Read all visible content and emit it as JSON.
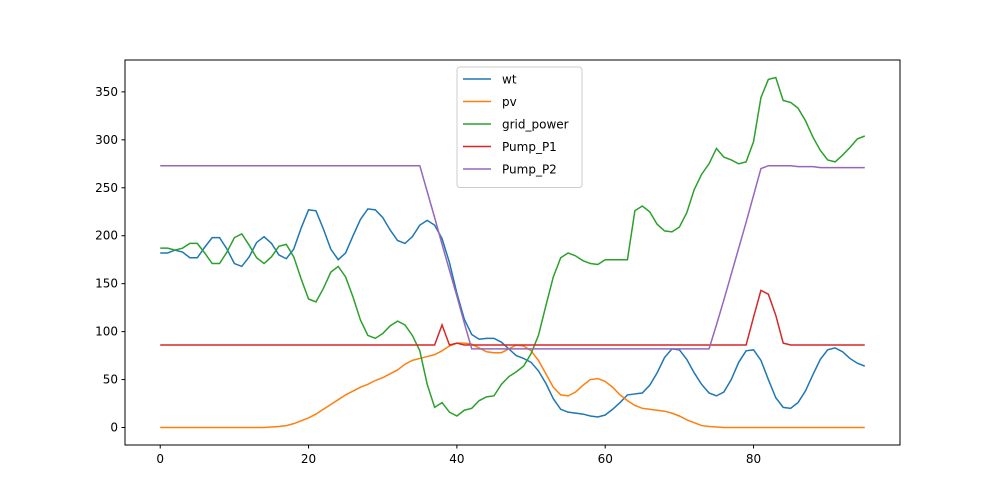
{
  "chart_data": {
    "type": "line",
    "x": [
      0,
      1,
      2,
      3,
      4,
      5,
      6,
      7,
      8,
      9,
      10,
      11,
      12,
      13,
      14,
      15,
      16,
      17,
      18,
      19,
      20,
      21,
      22,
      23,
      24,
      25,
      26,
      27,
      28,
      29,
      30,
      31,
      32,
      33,
      34,
      35,
      36,
      37,
      38,
      39,
      40,
      41,
      42,
      43,
      44,
      45,
      46,
      47,
      48,
      49,
      50,
      51,
      52,
      53,
      54,
      55,
      56,
      57,
      58,
      59,
      60,
      61,
      62,
      63,
      64,
      65,
      66,
      67,
      68,
      69,
      70,
      71,
      72,
      73,
      74,
      75,
      76,
      77,
      78,
      79,
      80,
      81,
      82,
      83,
      84,
      85,
      86,
      87,
      88,
      89,
      90,
      91,
      92,
      93,
      94,
      95
    ],
    "series": [
      {
        "name": "wt",
        "color": "#1f77b4",
        "values": [
          182,
          182,
          185,
          183,
          177,
          177,
          188,
          198,
          198,
          186,
          171,
          168,
          178,
          193,
          199,
          192,
          180,
          176,
          186,
          208,
          227,
          226,
          207,
          186,
          175,
          182,
          200,
          217,
          228,
          227,
          219,
          206,
          195,
          192,
          199,
          211,
          216,
          211,
          197,
          172,
          140,
          113,
          97,
          92,
          93,
          93,
          89,
          82,
          75,
          72,
          68,
          59,
          46,
          30,
          19,
          16,
          15,
          14,
          12,
          11,
          13,
          19,
          26,
          34,
          35,
          36,
          44,
          57,
          73,
          82,
          81,
          71,
          57,
          45,
          36,
          33,
          37,
          50,
          68,
          80,
          81,
          70,
          50,
          31,
          21,
          20,
          26,
          38,
          55,
          71,
          81,
          83,
          79,
          72,
          67,
          64
        ]
      },
      {
        "name": "pv",
        "color": "#ff7f0e",
        "values": [
          0,
          0,
          0,
          0,
          0,
          0,
          0,
          0,
          0,
          0,
          0,
          0,
          0,
          0,
          0,
          0.5,
          1,
          2,
          4,
          7,
          10,
          14,
          19,
          24,
          29,
          34,
          38,
          42,
          45,
          49,
          52,
          56,
          60,
          66,
          70,
          72,
          74,
          76,
          80,
          85,
          88,
          88,
          87,
          83,
          79,
          78,
          78,
          82,
          86,
          85,
          80,
          70,
          56,
          42,
          34,
          33,
          37,
          44,
          50,
          51,
          48,
          42,
          34,
          28,
          23,
          20,
          19,
          18,
          17,
          15,
          12,
          8,
          5,
          2,
          1,
          0.5,
          0,
          0,
          0,
          0,
          0,
          0,
          0,
          0,
          0,
          0,
          0,
          0,
          0,
          0,
          0,
          0,
          0,
          0,
          0,
          0
        ]
      },
      {
        "name": "grid_power",
        "color": "#2ca02c",
        "values": [
          187,
          187,
          185,
          187,
          192,
          192,
          182,
          171,
          171,
          183,
          198,
          202,
          190,
          177,
          171,
          178,
          189,
          191,
          178,
          155,
          134,
          131,
          145,
          162,
          168,
          157,
          136,
          112,
          96,
          93,
          98,
          106,
          111,
          107,
          96,
          80,
          45,
          21,
          26,
          16,
          12,
          18,
          20,
          28,
          32,
          33,
          45,
          53,
          58,
          64,
          77,
          96,
          127,
          157,
          177,
          182,
          179,
          174,
          171,
          170,
          175,
          175,
          175,
          175,
          226,
          231,
          225,
          212,
          205,
          204,
          209,
          224,
          248,
          264,
          275,
          291,
          282,
          279,
          275,
          277,
          298,
          344,
          363,
          365,
          341,
          339,
          333,
          320,
          303,
          289,
          279,
          277,
          284,
          292,
          301,
          304
        ]
      },
      {
        "name": "Pump_P1",
        "color": "#d62728",
        "values": [
          86,
          86,
          86,
          86,
          86,
          86,
          86,
          86,
          86,
          86,
          86,
          86,
          86,
          86,
          86,
          86,
          86,
          86,
          86,
          86,
          86,
          86,
          86,
          86,
          86,
          86,
          86,
          86,
          86,
          86,
          86,
          86,
          86,
          86,
          86,
          86,
          86,
          86,
          107,
          86,
          88,
          86,
          86,
          86,
          86,
          86,
          86,
          86,
          86,
          86,
          86,
          86,
          86,
          86,
          86,
          86,
          86,
          86,
          86,
          86,
          86,
          86,
          86,
          86,
          86,
          86,
          86,
          86,
          86,
          86,
          86,
          86,
          86,
          86,
          86,
          86,
          86,
          86,
          86,
          86,
          115,
          143,
          139,
          117,
          88,
          86,
          86,
          86,
          86,
          86,
          86,
          86,
          86,
          86,
          86,
          86
        ]
      },
      {
        "name": "Pump_P2",
        "color": "#9467bd",
        "values": [
          273,
          273,
          273,
          273,
          273,
          273,
          273,
          273,
          273,
          273,
          273,
          273,
          273,
          273,
          273,
          273,
          273,
          273,
          273,
          273,
          273,
          273,
          273,
          273,
          273,
          273,
          273,
          273,
          273,
          273,
          273,
          273,
          273,
          273,
          273,
          273,
          246,
          219,
          191,
          164,
          137,
          109,
          82,
          82,
          82,
          82,
          82,
          82,
          82,
          82,
          82,
          82,
          82,
          82,
          82,
          82,
          82,
          82,
          82,
          82,
          82,
          82,
          82,
          82,
          82,
          82,
          82,
          82,
          82,
          82,
          82,
          82,
          82,
          82,
          82,
          107,
          133,
          160,
          187,
          214,
          242,
          270,
          273,
          273,
          273,
          273,
          272,
          272,
          272,
          271,
          271,
          271,
          271,
          271,
          271,
          271
        ]
      }
    ],
    "xlim": [
      -4.75,
      99.75
    ],
    "ylim": [
      -18.25,
      383.25
    ],
    "xticks": [
      0,
      20,
      40,
      60,
      80
    ],
    "yticks": [
      0,
      50,
      100,
      150,
      200,
      250,
      300,
      350
    ],
    "legend": "upper center"
  }
}
